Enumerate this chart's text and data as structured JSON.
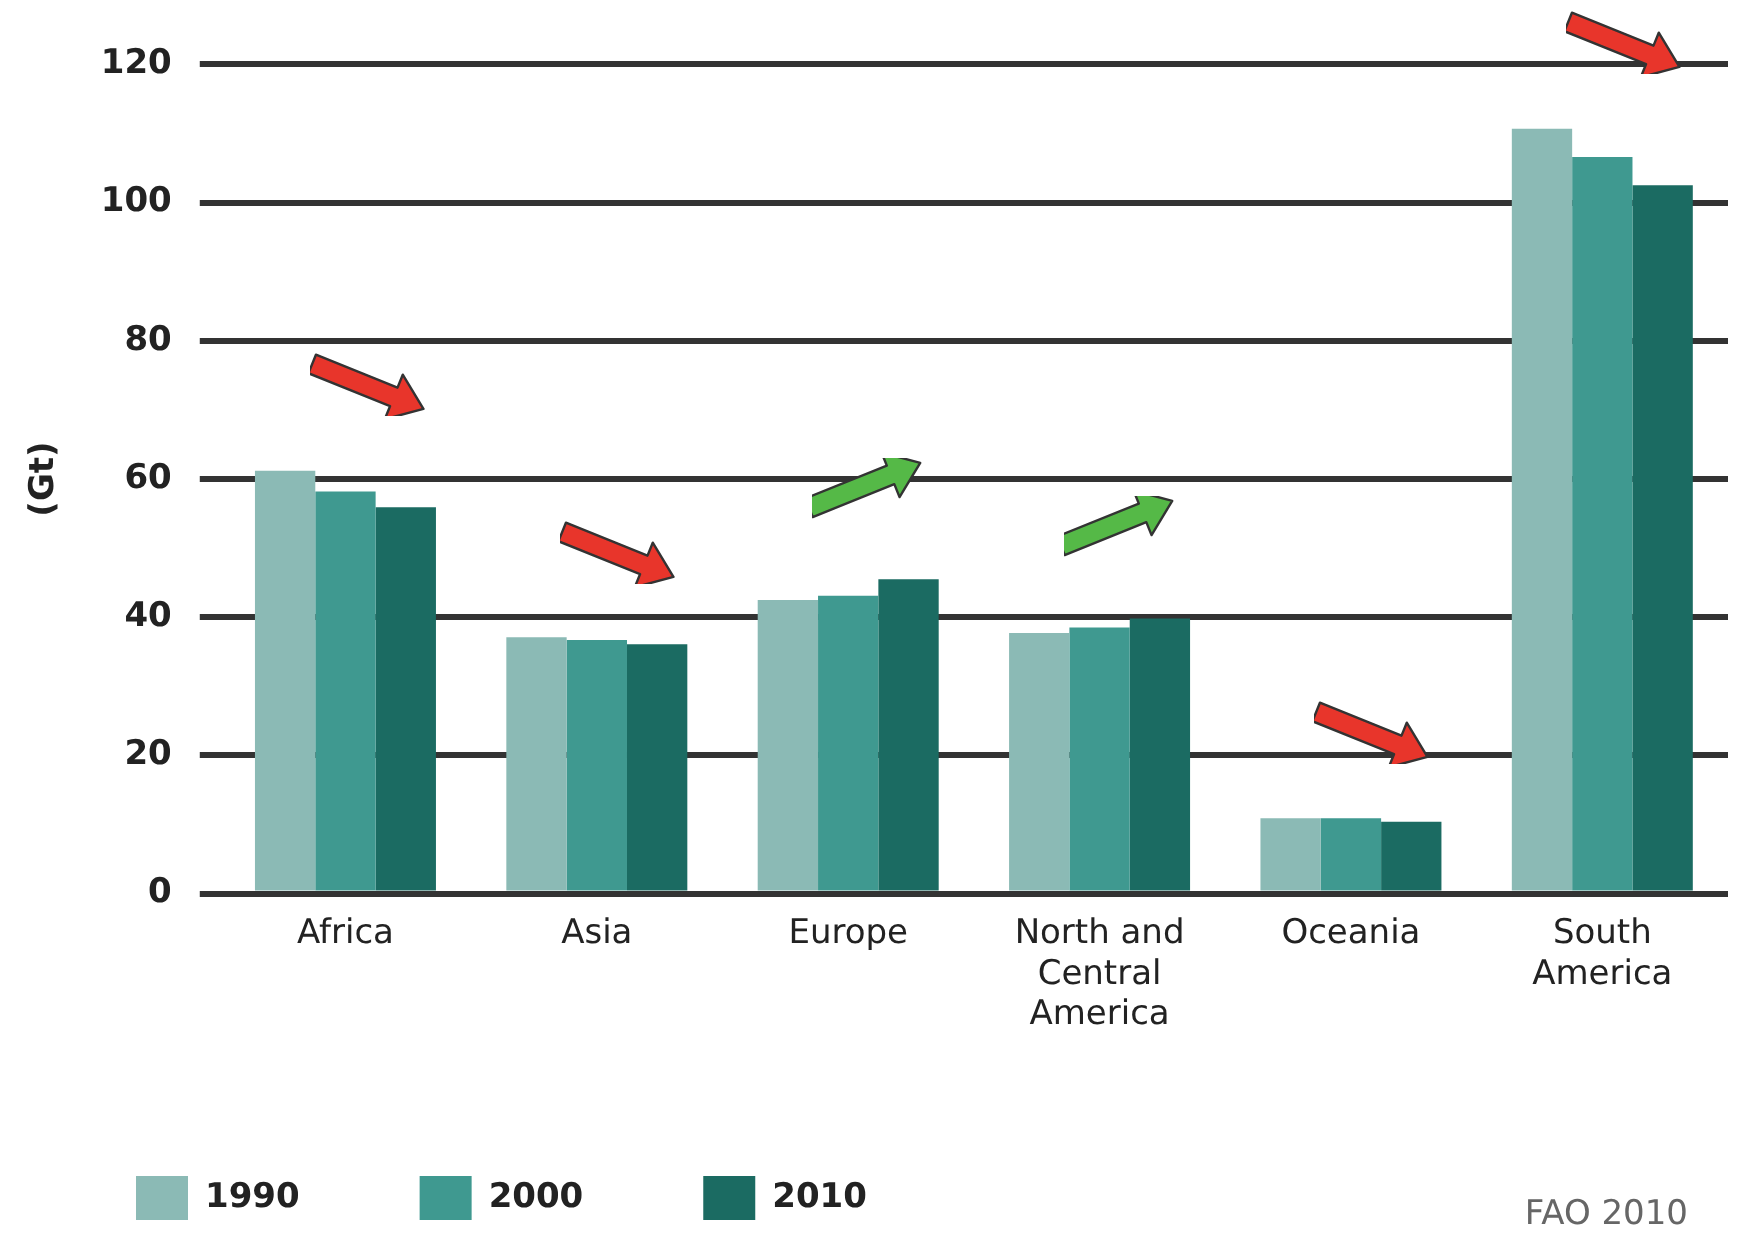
{
  "chart_data": {
    "type": "bar",
    "ylabel": "(Gt)",
    "categories": [
      "Africa",
      "Asia",
      "Europe",
      "North and Central America",
      "Oceania",
      "South America"
    ],
    "series": [
      {
        "name": "1990",
        "color": "#8bbab5",
        "values": [
          61.2,
          37.1,
          42.5,
          37.7,
          10.9,
          110.7
        ]
      },
      {
        "name": "2000",
        "color": "#3f9990",
        "values": [
          58.2,
          36.7,
          43.1,
          38.5,
          10.9,
          106.6
        ]
      },
      {
        "name": "2010",
        "color": "#1b6b62",
        "values": [
          55.9,
          36.1,
          45.5,
          39.8,
          10.4,
          102.5
        ]
      }
    ],
    "ylim": [
      0,
      120
    ],
    "yticks": [
      0,
      20,
      40,
      60,
      80,
      100,
      120
    ],
    "grid": "y",
    "legend": "bottom left",
    "annotations": [
      "FAO 2010"
    ]
  }
}
